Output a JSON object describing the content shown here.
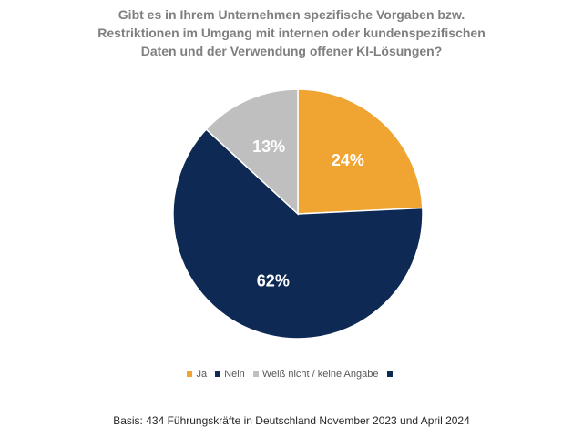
{
  "chart_data": {
    "type": "pie",
    "title": [
      "Gibt es in Ihrem Unternehmen spezifische Vorgaben bzw.",
      "Restriktionen im Umgang mit internen oder kundenspezifischen",
      "Daten und der Verwendung offener KI-Lösungen?"
    ],
    "categories": [
      "Ja",
      "Nein",
      "Weiß nicht / keine Angabe"
    ],
    "values": [
      24,
      62,
      13
    ],
    "data_labels": [
      "24%",
      "62%",
      "13%"
    ],
    "unit": "%",
    "colors": [
      "#F0A431",
      "#0E2A54",
      "#BFBFBF"
    ],
    "legend": {
      "placement": "bottom",
      "entries": [
        {
          "label": "Ja",
          "color": "#F0A431"
        },
        {
          "label": "Nein",
          "color": "#0E2A54"
        },
        {
          "label": "Weiß nicht / keine Angabe",
          "color": "#BFBFBF"
        },
        {
          "label": "",
          "color": "#0E2A54"
        }
      ]
    },
    "footnote": "Basis: 434 Führungskräfte in Deutschland November 2023 und April 2024"
  }
}
